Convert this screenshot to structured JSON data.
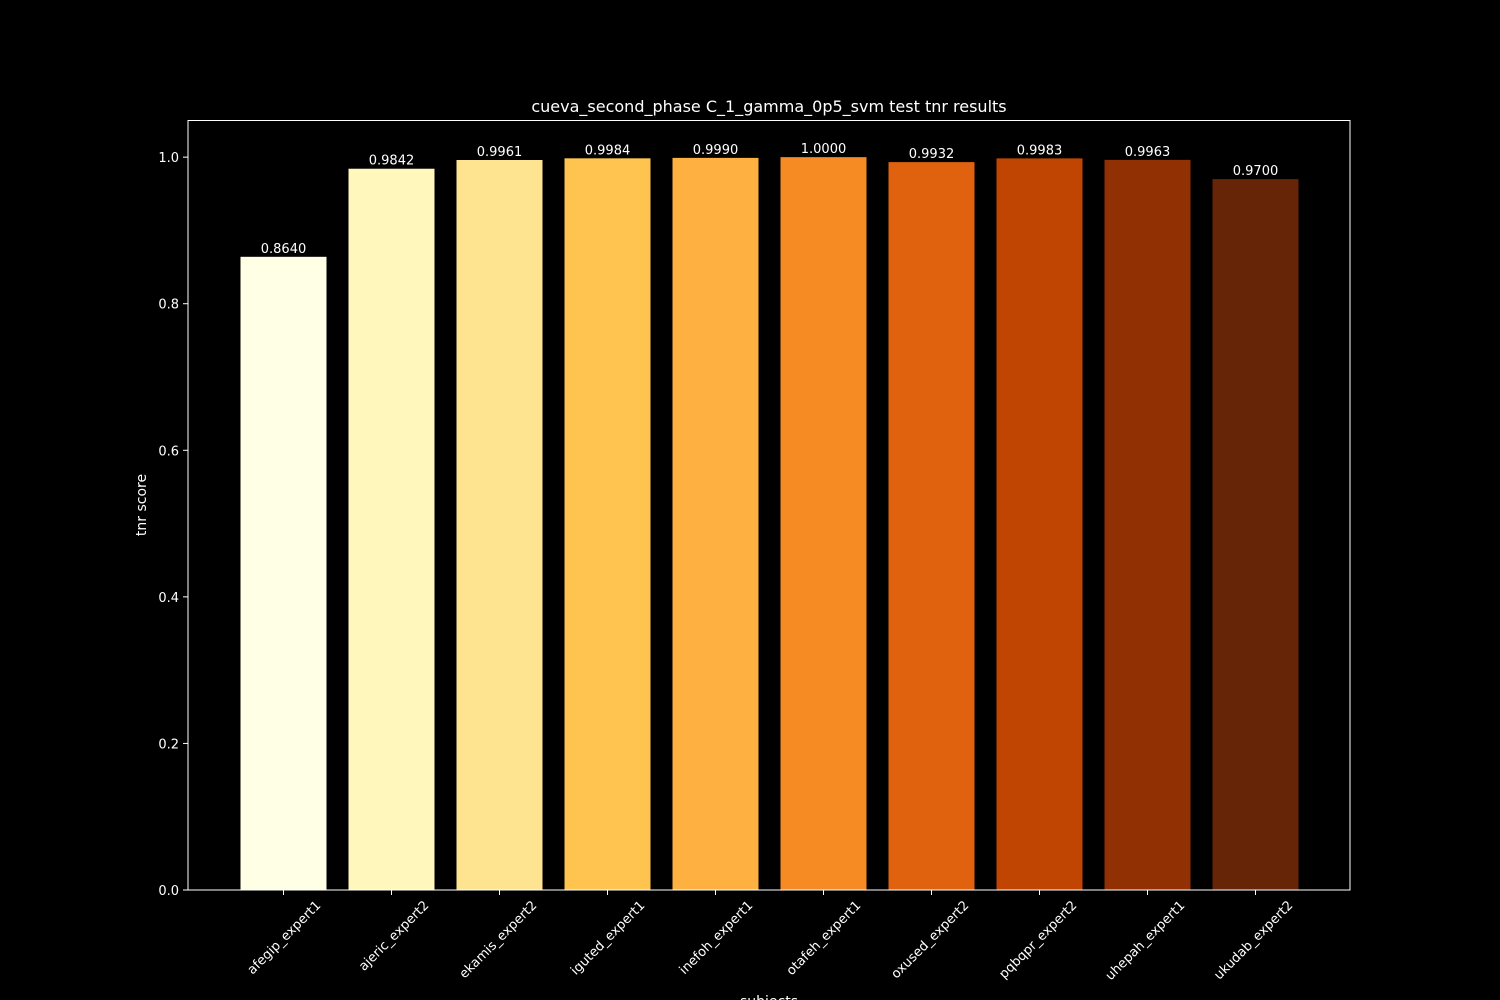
{
  "chart_data": {
    "type": "bar",
    "title": "cueva_second_phase C_1_gamma_0p5_svm test tnr results",
    "xlabel": "subjects",
    "ylabel": "tnr score",
    "ylim": [
      0,
      1.05
    ],
    "yticks": [
      "0.0",
      "0.2",
      "0.4",
      "0.6",
      "0.8",
      "1.0"
    ],
    "grid": false,
    "categories": [
      "afegip_expert1",
      "ajeric_expert2",
      "ekamis_expert2",
      "iguted_expert1",
      "inefoh_expert1",
      "otafeh_expert1",
      "oxused_expert2",
      "pqbqpr_expert2",
      "uhepah_expert1",
      "ukudab_expert2"
    ],
    "values": [
      0.864,
      0.9842,
      0.9961,
      0.9984,
      0.999,
      1.0,
      0.9932,
      0.9983,
      0.9963,
      0.97
    ],
    "value_labels": [
      "0.8640",
      "0.9842",
      "0.9961",
      "0.9984",
      "0.9990",
      "1.0000",
      "0.9932",
      "0.9983",
      "0.9963",
      "0.9700"
    ],
    "colors": [
      "#ffffe5",
      "#fff7bc",
      "#fee391",
      "#fec44f",
      "#feb040",
      "#f68a23",
      "#e0620f",
      "#c04402",
      "#903003",
      "#662506"
    ]
  }
}
